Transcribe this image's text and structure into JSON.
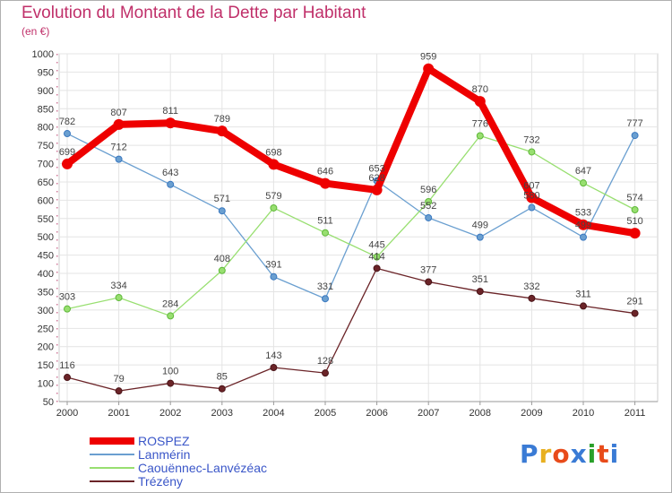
{
  "chart_data": {
    "type": "line",
    "title": "Evolution du Montant de la Dette par Habitant",
    "subtitle": "(en €)",
    "x": [
      "2000",
      "2001",
      "2002",
      "2003",
      "2004",
      "2005",
      "2006",
      "2007",
      "2008",
      "2009",
      "2010",
      "2011"
    ],
    "ylim": [
      50,
      1000
    ],
    "yticks": [
      50,
      100,
      150,
      200,
      250,
      300,
      350,
      400,
      450,
      500,
      550,
      600,
      650,
      700,
      750,
      800,
      850,
      900,
      950,
      1000
    ],
    "grid": true,
    "legend_placement": "bottom-left",
    "series": [
      {
        "name": "ROSPEZ",
        "color": "#ee0000",
        "width": 8,
        "values": [
          699,
          807,
          811,
          789,
          698,
          646,
          628,
          959,
          870,
          607,
          533,
          510
        ],
        "labels": [
          "699",
          "807",
          "811",
          "789",
          "698",
          "646",
          "628",
          "959",
          "870",
          "607",
          "533",
          "510"
        ]
      },
      {
        "name": "Lanmérin",
        "color": "#6a9fd0",
        "width": 1.3,
        "values": [
          782,
          712,
          643,
          571,
          391,
          331,
          653,
          552,
          499,
          580,
          499,
          777
        ],
        "labels": [
          "782",
          "712",
          "643",
          "571",
          "391",
          "331",
          "653",
          "552",
          "499",
          "580",
          "499",
          "777"
        ]
      },
      {
        "name": "Caouënnec-Lanvézéac",
        "color": "#98df70",
        "width": 1.3,
        "values": [
          303,
          334,
          284,
          408,
          579,
          511,
          445,
          596,
          776,
          732,
          647,
          574
        ],
        "labels": [
          "303",
          "334",
          "284",
          "408",
          "579",
          "511",
          "445",
          "596",
          "776",
          "732",
          "647",
          "574"
        ]
      },
      {
        "name": "Trézény",
        "color": "#6b2428",
        "width": 1.3,
        "values": [
          116,
          79,
          100,
          85,
          143,
          128,
          414,
          377,
          351,
          332,
          311,
          291
        ],
        "labels": [
          "116",
          "79",
          "100",
          "85",
          "143",
          "128",
          "414",
          "377",
          "351",
          "332",
          "311",
          "291"
        ]
      }
    ]
  },
  "logo": {
    "text": "Proxiti",
    "colors": [
      "#3a7bd5",
      "#e8b020",
      "#e84b1a",
      "#3a7bd5",
      "#2aa02a",
      "#e84b1a",
      "#3a7bd5"
    ]
  }
}
